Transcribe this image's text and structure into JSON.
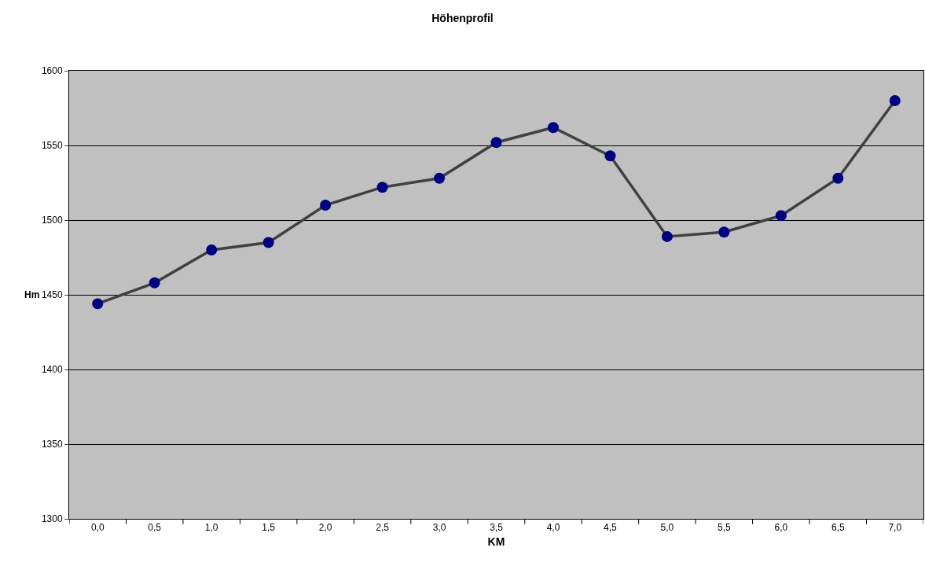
{
  "chart_data": {
    "type": "line",
    "title": "Höhenprofil",
    "xlabel": "KM",
    "ylabel": "Hm",
    "categories": [
      "0,0",
      "0,5",
      "1,0",
      "1,5",
      "2,0",
      "2,5",
      "3,0",
      "3,5",
      "4,0",
      "4,5",
      "5,0",
      "5,5",
      "6,0",
      "6,5",
      "7,0"
    ],
    "series": [
      {
        "color": "#404040",
        "colors": [
          "#000080",
          "#000080",
          "#000080",
          "#000080",
          "#000080",
          "#000080",
          "#000080",
          "#000080",
          "#000080",
          "#000080",
          "#000080",
          "#000080",
          "#000080",
          "#000080",
          "#000080"
        ],
        "values": [
          1444,
          1458,
          1480,
          1485,
          1510,
          1522,
          1528,
          1552,
          1562,
          1543,
          1489,
          1492,
          1503,
          1528,
          1580
        ]
      }
    ],
    "ylim": [
      1300,
      1600
    ],
    "yticks": [
      1300,
      1350,
      1400,
      1450,
      1500,
      1550,
      1600
    ],
    "grid": "y",
    "marker": "circle",
    "line_style": "solid"
  }
}
